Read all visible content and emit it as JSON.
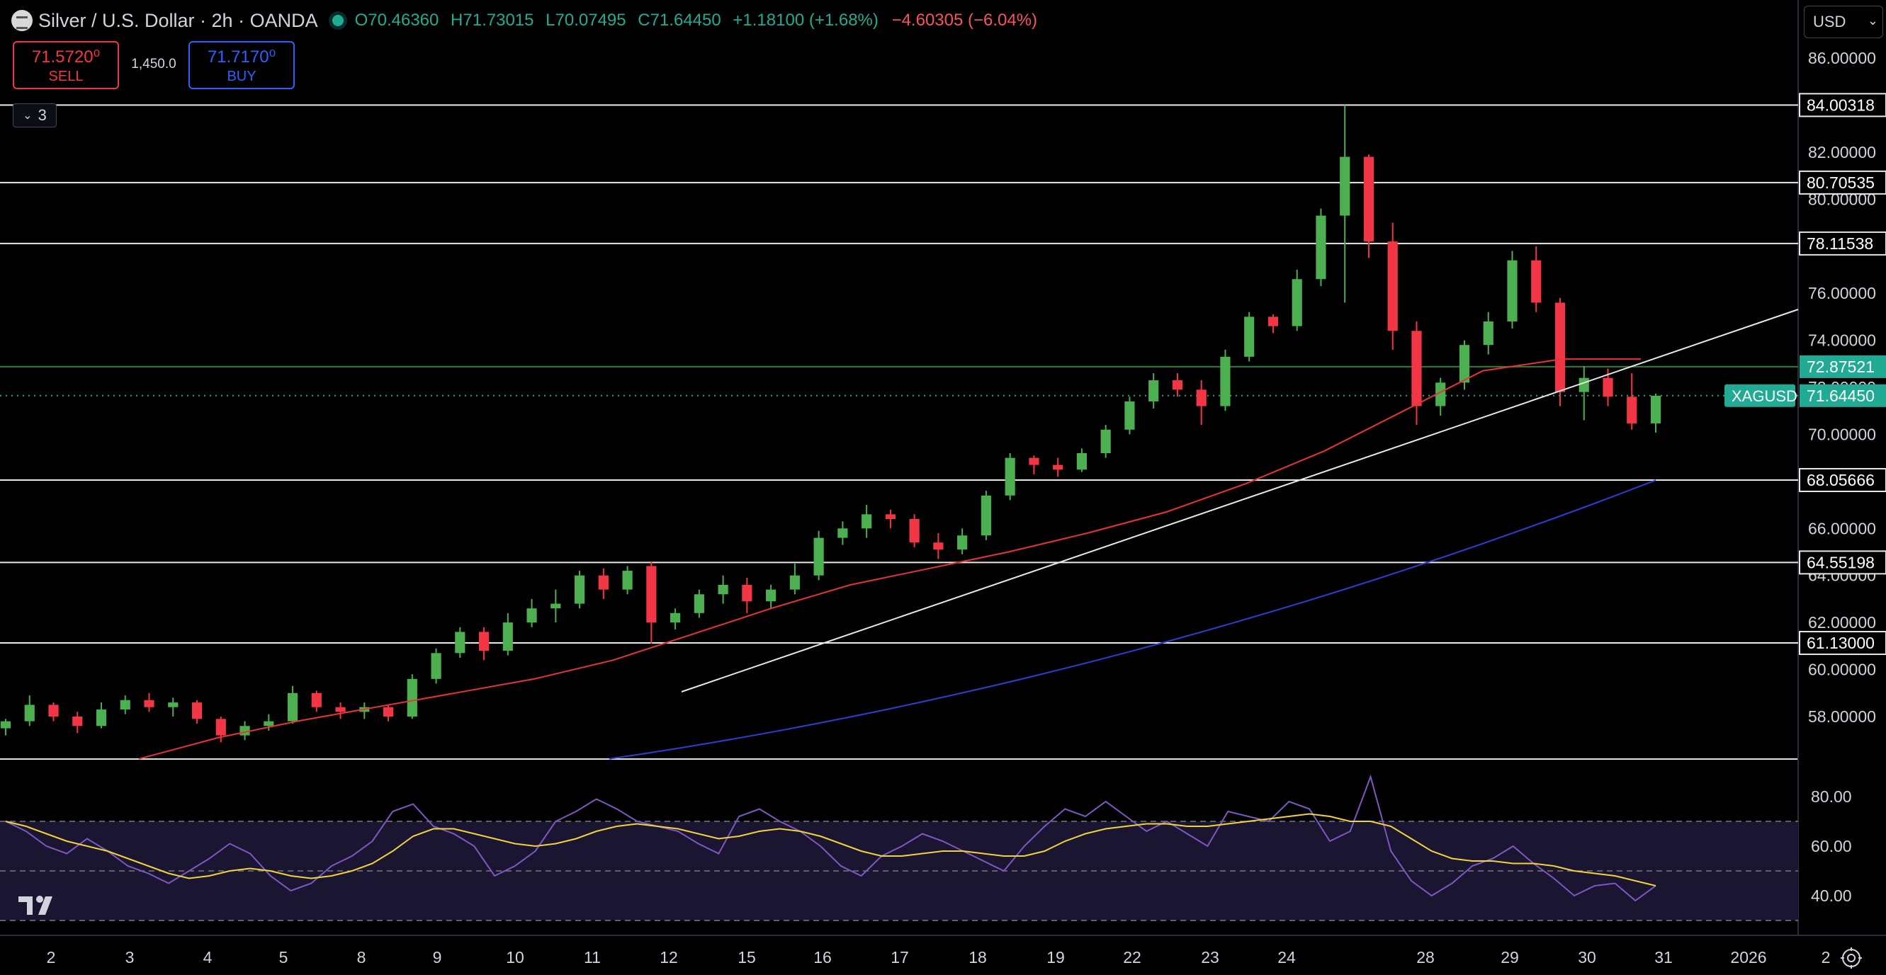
{
  "header": {
    "title": "Silver / U.S. Dollar · 2h · OANDA",
    "open": "O70.46360",
    "high": "H71.73015",
    "low": "L70.07495",
    "close": "C71.64450",
    "change": "+1.18100 (+1.68%)",
    "change2": "−4.60305 (−6.04%)"
  },
  "trade": {
    "sell_price": "71.5720⁰",
    "sell_label": "SELL",
    "spread": "1,450.0",
    "buy_price": "71.7170⁰",
    "buy_label": "BUY"
  },
  "indicators_collapse": {
    "icon": "chevron-down-icon",
    "count": "3"
  },
  "currency": {
    "selected": "USD"
  },
  "colors": {
    "up": "#4caf50",
    "down": "#f23645",
    "ma_fast": "#e8323c",
    "ma_slow": "#2b3fd6",
    "rsi": "#7e57c2",
    "rsi_ma": "#f2d33c",
    "last_price_bg": "#22ab94"
  },
  "chart_data": [
    {
      "type": "candlestick",
      "symbol": "XAGUSD",
      "interval": "2h",
      "ylim": [
        56.0,
        87.0
      ],
      "y_ticks": [
        "58.00000",
        "60.00000",
        "62.00000",
        "64.00000",
        "66.00000",
        "68.00000",
        "70.00000",
        "72.00000",
        "74.00000",
        "76.00000",
        "78.00000",
        "80.00000",
        "82.00000",
        "84.00000",
        "86.00000"
      ],
      "x_tick_labels": [
        "2",
        "3",
        "4",
        "5",
        "8",
        "9",
        "10",
        "11",
        "12",
        "15",
        "16",
        "17",
        "18",
        "19",
        "22",
        "23",
        "24",
        "28",
        "29",
        "30",
        "31",
        "2026",
        "2"
      ],
      "horizontal_levels": [
        84.00318,
        80.70535,
        78.11538,
        68.05666,
        64.55198,
        61.13
      ],
      "horizontal_level_labels": [
        "84.00318",
        "80.70535",
        "78.11538",
        "68.05666",
        "64.55198",
        "61.13000"
      ],
      "resistance_level": 72.87521,
      "resistance_label": "72.87521",
      "last_price": 71.6445,
      "last_price_label": "71.64450",
      "last_symbol": "XAGUSD",
      "trendline": {
        "from": [
          "Dec 12",
          58.9
        ],
        "to": [
          "Jan 2",
          75.4
        ]
      },
      "ohlc": [
        [
          "Dec 2",
          57.5,
          57.9,
          57.2,
          57.8
        ],
        [
          "Dec 2",
          57.8,
          58.9,
          57.6,
          58.5
        ],
        [
          "Dec 2",
          58.5,
          58.6,
          57.8,
          58.0
        ],
        [
          "Dec 3",
          58.0,
          58.2,
          57.3,
          57.6
        ],
        [
          "Dec 3",
          57.6,
          58.6,
          57.5,
          58.3
        ],
        [
          "Dec 3",
          58.3,
          58.9,
          58.1,
          58.7
        ],
        [
          "Dec 4",
          58.7,
          59.0,
          58.2,
          58.4
        ],
        [
          "Dec 4",
          58.4,
          58.8,
          58.0,
          58.6
        ],
        [
          "Dec 4",
          58.6,
          58.7,
          57.7,
          57.9
        ],
        [
          "Dec 5",
          57.9,
          58.0,
          56.9,
          57.2
        ],
        [
          "Dec 5",
          57.2,
          57.8,
          57.0,
          57.6
        ],
        [
          "Dec 5",
          57.6,
          58.1,
          57.4,
          57.8
        ],
        [
          "Dec 8",
          57.8,
          59.3,
          57.7,
          59.0
        ],
        [
          "Dec 8",
          59.0,
          59.1,
          58.2,
          58.4
        ],
        [
          "Dec 8",
          58.4,
          58.6,
          57.9,
          58.2
        ],
        [
          "Dec 9",
          58.2,
          58.6,
          57.9,
          58.4
        ],
        [
          "Dec 9",
          58.4,
          58.5,
          57.8,
          58.0
        ],
        [
          "Dec 9",
          58.0,
          59.8,
          57.9,
          59.6
        ],
        [
          "Dec 10",
          59.6,
          60.9,
          59.4,
          60.7
        ],
        [
          "Dec 10",
          60.7,
          61.8,
          60.5,
          61.6
        ],
        [
          "Dec 10",
          61.6,
          61.8,
          60.4,
          60.8
        ],
        [
          "Dec 11",
          60.8,
          62.4,
          60.6,
          62.0
        ],
        [
          "Dec 11",
          62.0,
          63.0,
          61.8,
          62.6
        ],
        [
          "Dec 11",
          62.6,
          63.4,
          62.0,
          62.8
        ],
        [
          "Dec 12",
          62.8,
          64.2,
          62.6,
          64.0
        ],
        [
          "Dec 12",
          64.0,
          64.3,
          63.0,
          63.4
        ],
        [
          "Dec 12",
          63.4,
          64.4,
          63.2,
          64.2
        ],
        [
          "Dec 15",
          64.4,
          64.6,
          61.1,
          62.0
        ],
        [
          "Dec 15",
          62.0,
          62.6,
          61.7,
          62.4
        ],
        [
          "Dec 15",
          62.4,
          63.4,
          62.2,
          63.2
        ],
        [
          "Dec 16",
          63.2,
          64.0,
          62.8,
          63.6
        ],
        [
          "Dec 16",
          63.6,
          63.9,
          62.4,
          62.9
        ],
        [
          "Dec 16",
          62.9,
          63.6,
          62.6,
          63.4
        ],
        [
          "Dec 17",
          63.4,
          64.5,
          63.2,
          64.0
        ],
        [
          "Dec 17",
          64.0,
          65.9,
          63.8,
          65.6
        ],
        [
          "Dec 17",
          65.6,
          66.3,
          65.3,
          66.0
        ],
        [
          "Dec 18",
          66.0,
          67.0,
          65.6,
          66.6
        ],
        [
          "Dec 18",
          66.6,
          66.8,
          66.0,
          66.4
        ],
        [
          "Dec 18",
          66.4,
          66.6,
          65.2,
          65.4
        ],
        [
          "Dec 19",
          65.4,
          65.8,
          64.7,
          65.1
        ],
        [
          "Dec 19",
          65.1,
          66.0,
          64.9,
          65.7
        ],
        [
          "Dec 19",
          65.7,
          67.6,
          65.5,
          67.4
        ],
        [
          "Dec 22",
          67.4,
          69.2,
          67.2,
          69.0
        ],
        [
          "Dec 22",
          69.0,
          69.1,
          68.3,
          68.7
        ],
        [
          "Dec 22",
          68.7,
          69.0,
          68.2,
          68.5
        ],
        [
          "Dec 23",
          68.5,
          69.4,
          68.4,
          69.2
        ],
        [
          "Dec 23",
          69.2,
          70.4,
          69.0,
          70.2
        ],
        [
          "Dec 23",
          70.2,
          71.6,
          70.0,
          71.4
        ],
        [
          "Dec 24",
          71.4,
          72.6,
          71.1,
          72.3
        ],
        [
          "Dec 24",
          72.3,
          72.6,
          71.6,
          71.9
        ],
        [
          "Dec 24",
          71.9,
          72.3,
          70.4,
          71.2
        ],
        [
          "Dec 26",
          71.2,
          73.6,
          71.0,
          73.3
        ],
        [
          "Dec 26",
          73.3,
          75.2,
          73.1,
          75.0
        ],
        [
          "Dec 26",
          75.0,
          75.1,
          74.3,
          74.6
        ],
        [
          "Dec 26",
          74.6,
          77.0,
          74.4,
          76.6
        ],
        [
          "Dec 26",
          76.6,
          79.6,
          76.3,
          79.3
        ],
        [
          "Dec 28",
          79.3,
          84.0,
          75.6,
          81.8
        ],
        [
          "Dec 28",
          81.8,
          81.9,
          77.5,
          78.2
        ],
        [
          "Dec 29",
          78.2,
          79.0,
          73.6,
          74.4
        ],
        [
          "Dec 29",
          74.4,
          74.8,
          70.4,
          71.2
        ],
        [
          "Dec 29",
          71.2,
          72.4,
          70.8,
          72.2
        ],
        [
          "Dec 30",
          72.2,
          74.0,
          71.9,
          73.8
        ],
        [
          "Dec 30",
          73.8,
          75.2,
          73.4,
          74.8
        ],
        [
          "Dec 30",
          74.8,
          77.8,
          74.5,
          77.4
        ],
        [
          "Dec 30",
          77.4,
          78.0,
          75.2,
          75.6
        ],
        [
          "Dec 31",
          75.6,
          75.8,
          71.2,
          71.8
        ],
        [
          "Dec 31",
          71.8,
          72.9,
          70.6,
          72.4
        ],
        [
          "Dec 31",
          72.4,
          72.8,
          71.2,
          71.6
        ],
        [
          "Jan 1",
          71.6,
          72.6,
          70.2,
          70.46
        ],
        [
          "Jan 2",
          70.4636,
          71.73015,
          70.07495,
          71.6445
        ]
      ],
      "ma_fast_series": [
        56.2,
        57.1,
        57.8,
        58.4,
        59.0,
        59.6,
        60.4,
        61.5,
        62.6,
        63.6,
        64.3,
        65.0,
        65.8,
        66.7,
        67.9,
        69.3,
        71.0,
        72.7,
        73.2,
        73.2
      ]
    },
    {
      "type": "line",
      "name": "RSI",
      "ylim": [
        28,
        92
      ],
      "y_ticks": [
        "40.00",
        "60.00",
        "80.00"
      ],
      "bands": [
        30,
        50,
        70
      ],
      "rsi_values": [
        70,
        66,
        60,
        57,
        63,
        58,
        52,
        49,
        45,
        50,
        55,
        61,
        57,
        48,
        42,
        45,
        52,
        56,
        62,
        74,
        77,
        68,
        65,
        60,
        48,
        52,
        58,
        70,
        74,
        79,
        75,
        70,
        68,
        66,
        61,
        57,
        72,
        75,
        70,
        66,
        60,
        52,
        48,
        56,
        60,
        65,
        62,
        58,
        54,
        50,
        60,
        68,
        75,
        72,
        78,
        72,
        66,
        70,
        65,
        60,
        74,
        72,
        70,
        78,
        75,
        62,
        66,
        88,
        58,
        46,
        40,
        45,
        52,
        55,
        60,
        53,
        47,
        40,
        44,
        45,
        38,
        44
      ],
      "rsi_ma_values": [
        70,
        68,
        65,
        62,
        60,
        58,
        55,
        52,
        49,
        47,
        48,
        50,
        51,
        50,
        48,
        47,
        48,
        50,
        53,
        58,
        64,
        67,
        67,
        65,
        63,
        61,
        60,
        61,
        63,
        66,
        68,
        69,
        68,
        67,
        65,
        63,
        64,
        66,
        67,
        66,
        64,
        61,
        58,
        56,
        56,
        57,
        58,
        58,
        57,
        56,
        56,
        58,
        62,
        65,
        67,
        68,
        69,
        69,
        68,
        68,
        69,
        70,
        71,
        72,
        73,
        72,
        70,
        70,
        68,
        63,
        58,
        55,
        54,
        54,
        53,
        53,
        52,
        50,
        49,
        48,
        46,
        44
      ]
    }
  ]
}
